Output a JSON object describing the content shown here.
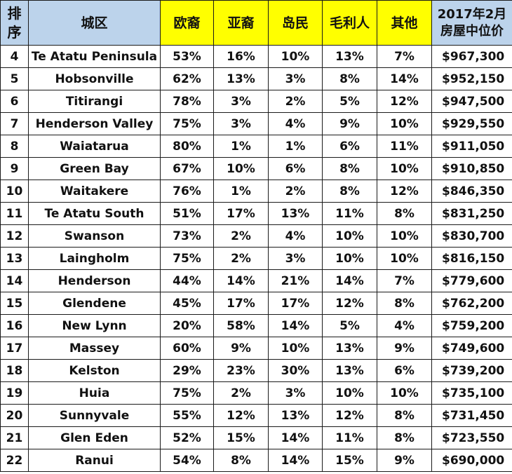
{
  "headers": {
    "rank_line1": "排",
    "rank_line2": "序",
    "area": "城区",
    "european": "欧裔",
    "asian": "亚裔",
    "islander": "岛民",
    "maori": "毛利人",
    "other": "其他",
    "price_line1": "2017年2月",
    "price_line2": "房屋中位价"
  },
  "colors": {
    "header_blue": "#bcd3eb",
    "header_yellow": "#ffff00",
    "border": "#1a1a1a"
  },
  "rows": [
    {
      "rank": "4",
      "area": "Te Atatu Peninsula",
      "european": "53%",
      "asian": "16%",
      "islander": "10%",
      "maori": "13%",
      "other": "7%",
      "price": "$967,300"
    },
    {
      "rank": "5",
      "area": "Hobsonville",
      "european": "62%",
      "asian": "13%",
      "islander": "3%",
      "maori": "8%",
      "other": "14%",
      "price": "$952,150"
    },
    {
      "rank": "6",
      "area": "Titirangi",
      "european": "78%",
      "asian": "3%",
      "islander": "2%",
      "maori": "5%",
      "other": "12%",
      "price": "$947,500"
    },
    {
      "rank": "7",
      "area": "Henderson Valley",
      "european": "75%",
      "asian": "3%",
      "islander": "4%",
      "maori": "9%",
      "other": "10%",
      "price": "$929,550"
    },
    {
      "rank": "8",
      "area": "Waiatarua",
      "european": "80%",
      "asian": "1%",
      "islander": "1%",
      "maori": "6%",
      "other": "11%",
      "price": "$911,050"
    },
    {
      "rank": "9",
      "area": "Green Bay",
      "european": "67%",
      "asian": "10%",
      "islander": "6%",
      "maori": "8%",
      "other": "10%",
      "price": "$910,850"
    },
    {
      "rank": "10",
      "area": "Waitakere",
      "european": "76%",
      "asian": "1%",
      "islander": "2%",
      "maori": "8%",
      "other": "12%",
      "price": "$846,350"
    },
    {
      "rank": "11",
      "area": "Te Atatu South",
      "european": "51%",
      "asian": "17%",
      "islander": "13%",
      "maori": "11%",
      "other": "8%",
      "price": "$831,250"
    },
    {
      "rank": "12",
      "area": "Swanson",
      "european": "73%",
      "asian": "2%",
      "islander": "4%",
      "maori": "10%",
      "other": "10%",
      "price": "$830,700"
    },
    {
      "rank": "13",
      "area": "Laingholm",
      "european": "75%",
      "asian": "2%",
      "islander": "3%",
      "maori": "10%",
      "other": "10%",
      "price": "$816,150"
    },
    {
      "rank": "14",
      "area": "Henderson",
      "european": "44%",
      "asian": "14%",
      "islander": "21%",
      "maori": "14%",
      "other": "7%",
      "price": "$779,600"
    },
    {
      "rank": "15",
      "area": "Glendene",
      "european": "45%",
      "asian": "17%",
      "islander": "17%",
      "maori": "12%",
      "other": "8%",
      "price": "$762,200"
    },
    {
      "rank": "16",
      "area": "New Lynn",
      "european": "20%",
      "asian": "58%",
      "islander": "14%",
      "maori": "5%",
      "other": "4%",
      "price": "$759,200"
    },
    {
      "rank": "17",
      "area": "Massey",
      "european": "60%",
      "asian": "9%",
      "islander": "10%",
      "maori": "13%",
      "other": "9%",
      "price": "$749,600"
    },
    {
      "rank": "18",
      "area": "Kelston",
      "european": "29%",
      "asian": "23%",
      "islander": "30%",
      "maori": "13%",
      "other": "6%",
      "price": "$739,200"
    },
    {
      "rank": "19",
      "area": "Huia",
      "european": "75%",
      "asian": "2%",
      "islander": "3%",
      "maori": "10%",
      "other": "10%",
      "price": "$735,100"
    },
    {
      "rank": "20",
      "area": "Sunnyvale",
      "european": "55%",
      "asian": "12%",
      "islander": "13%",
      "maori": "12%",
      "other": "8%",
      "price": "$731,450"
    },
    {
      "rank": "21",
      "area": "Glen Eden",
      "european": "52%",
      "asian": "15%",
      "islander": "14%",
      "maori": "11%",
      "other": "8%",
      "price": "$723,550"
    },
    {
      "rank": "22",
      "area": "Ranui",
      "european": "54%",
      "asian": "8%",
      "islander": "14%",
      "maori": "15%",
      "other": "9%",
      "price": "$690,000"
    }
  ]
}
